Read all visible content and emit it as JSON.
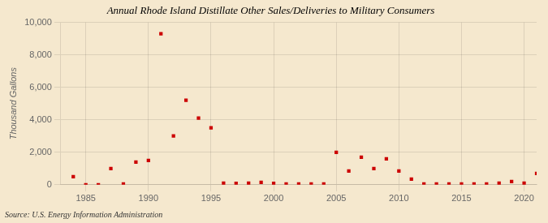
{
  "chart_data": {
    "type": "scatter",
    "title": "Annual Rhode Island Distillate Other Sales/Deliveries to Military Consumers",
    "ylabel": "Thousand Gallons",
    "annotations": [
      "Source: U.S. Energy Information Administration"
    ],
    "x": [
      1984,
      1985,
      1986,
      1987,
      1988,
      1989,
      1990,
      1991,
      1992,
      1993,
      1994,
      1995,
      1996,
      1997,
      1998,
      1999,
      2000,
      2001,
      2002,
      2003,
      2004,
      2005,
      2006,
      2007,
      2008,
      2009,
      2010,
      2011,
      2012,
      2013,
      2014,
      2015,
      2016,
      2017,
      2018,
      2019,
      2020,
      2021
    ],
    "values": [
      500,
      0,
      0,
      1000,
      50,
      1400,
      1500,
      9300,
      3000,
      5200,
      4100,
      3500,
      100,
      80,
      100,
      150,
      80,
      50,
      50,
      50,
      50,
      2000,
      850,
      1700,
      1000,
      1600,
      850,
      350,
      50,
      50,
      50,
      50,
      50,
      50,
      100,
      200,
      100,
      700
    ],
    "color": "#cc0000",
    "marker": "square",
    "xlim": [
      1983,
      2021
    ],
    "ylim": [
      0,
      10000
    ],
    "xticks": [
      1985,
      1990,
      1995,
      2000,
      2005,
      2010,
      2015,
      2020
    ],
    "yticks": [
      0,
      {
        "value": 2000,
        "label": "2,000"
      },
      {
        "value": 4000,
        "label": "4,000"
      },
      {
        "value": 6000,
        "label": "6,000"
      },
      {
        "value": 8000,
        "label": "8,000"
      },
      {
        "value": 10000,
        "label": "10,000"
      }
    ],
    "grid": true
  }
}
